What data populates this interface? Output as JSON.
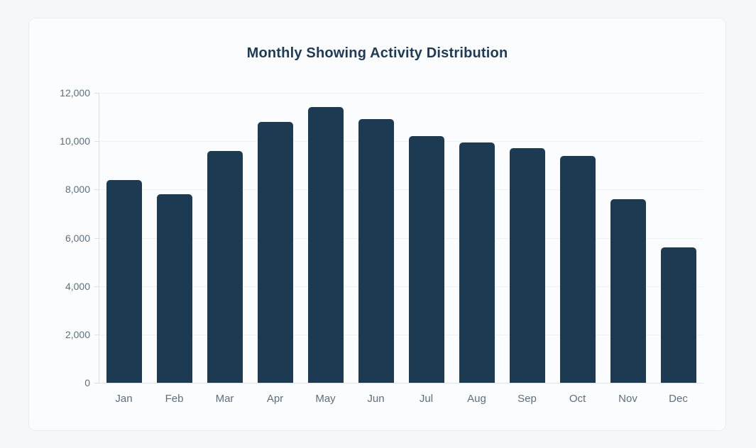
{
  "card": {
    "title": "Monthly Showing Activity Distribution"
  },
  "chart_data": {
    "type": "bar",
    "title": "Monthly Showing Activity Distribution",
    "categories": [
      "Jan",
      "Feb",
      "Mar",
      "Apr",
      "May",
      "Jun",
      "Jul",
      "Aug",
      "Sep",
      "Oct",
      "Nov",
      "Dec"
    ],
    "values": [
      8400,
      7800,
      9600,
      10800,
      11400,
      10900,
      10200,
      9950,
      9700,
      9400,
      7600,
      5600
    ],
    "xlabel": "",
    "ylabel": "",
    "ylim": [
      0,
      12000
    ],
    "yticks": [
      0,
      2000,
      4000,
      6000,
      8000,
      10000,
      12000
    ],
    "ytick_labels": [
      "0",
      "2,000",
      "4,000",
      "6,000",
      "8,000",
      "10,000",
      "12,000"
    ],
    "grid": true,
    "legend": false,
    "bar_color": "#1d3a53",
    "title_color": "#1d3a57",
    "axis_label_color": "#5d6e80",
    "gridline_color": "#edf1f4"
  }
}
